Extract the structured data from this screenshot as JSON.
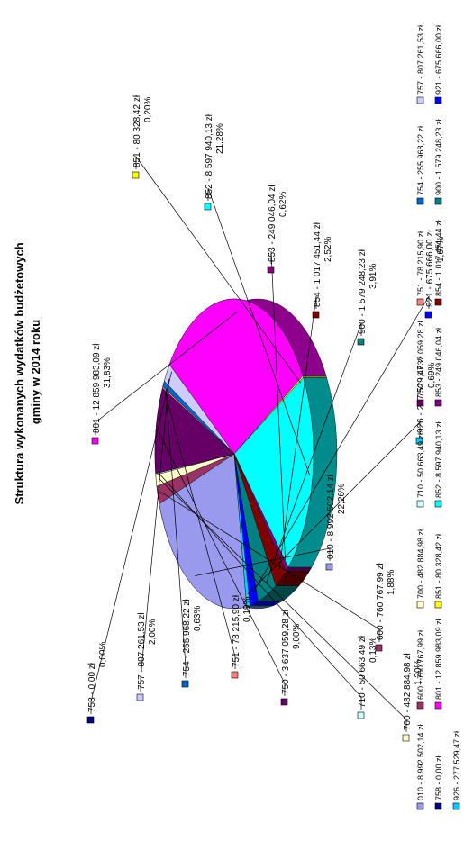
{
  "chart_data": {
    "type": "pie",
    "title_lines": [
      "Struktura wykonanych wydatków budżetowych",
      "gminy w 2014 roku"
    ],
    "legend_position": "right",
    "slices": [
      {
        "code": "010",
        "value": 8992502.14,
        "amount": "8 992 502,14 zł",
        "legend_amount": "8 992 502,14 zł",
        "percent": "22,26%",
        "color": "#9999ee"
      },
      {
        "code": "600",
        "value": 760767.99,
        "amount": "760 767,99 zł",
        "legend_amount": "760 767,99 zł",
        "percent": "1,88%",
        "color": "#993366"
      },
      {
        "code": "700",
        "value": 482884.98,
        "amount": "482 884,98 zł",
        "legend_amount": "482 884,98 zł",
        "percent": "1,20%",
        "color": "#ffffcc"
      },
      {
        "code": "710",
        "value": 50663.49,
        "amount": "50 663,49 zł",
        "legend_amount": "50 663,49 zł",
        "percent": "0,13%",
        "color": "#ccffff"
      },
      {
        "code": "750",
        "value": 3637059.28,
        "amount": "3 637 059,28 zł",
        "legend_amount": "3 637 059,28 zł",
        "percent": "9,00%",
        "color": "#660066"
      },
      {
        "code": "751",
        "value": 78215.9,
        "amount": "78 215,90 zł",
        "legend_amount": "78 215,90 zł",
        "percent": "0,19%",
        "color": "#ff8080"
      },
      {
        "code": "754",
        "value": 255968.22,
        "amount": "255 968,22 zł",
        "legend_amount": "255 968,22 zł",
        "percent": "0,63%",
        "color": "#0066cc"
      },
      {
        "code": "757",
        "value": 807261.53,
        "amount": "807 261,53 zł",
        "legend_amount": "807 261,53 zł",
        "percent": "2,00%",
        "color": "#ccccff"
      },
      {
        "code": "758",
        "value": 0.0,
        "amount": "0,00 zł",
        "legend_amount": "0,00 zł",
        "percent": "0,00%",
        "color": "#000080"
      },
      {
        "code": "801",
        "value": 12859983.09,
        "amount": "12 859 983,09 zł",
        "legend_amount": "12 859 983,09 zł",
        "percent": "31,83%",
        "color": "#ff00ff"
      },
      {
        "code": "851",
        "value": 80328.42,
        "amount": "80 328,42 zł",
        "legend_amount": "80 328,42 zł",
        "percent": "0,20%",
        "color": "#ffff00"
      },
      {
        "code": "852",
        "value": 8597940.13,
        "amount": "8 597 940,13 zł",
        "legend_amount": "8 597 940,13 zł",
        "percent": "21,28%",
        "color": "#00ffff"
      },
      {
        "code": "853",
        "value": 249046.04,
        "amount": "249 046,04 zł",
        "legend_amount": "249 046,04 zł",
        "percent": "0,62%",
        "color": "#800080"
      },
      {
        "code": "854",
        "value": 1017451.44,
        "amount": "1 017 451,44 zł",
        "legend_amount": "1 017 451,44 zł",
        "percent": "2,52%",
        "color": "#800000"
      },
      {
        "code": "900",
        "value": 1579248.23,
        "amount": "1 579 248,23 zł",
        "legend_amount": "1 579 248,23 zł",
        "percent": "3,91%",
        "color": "#008080"
      },
      {
        "code": "921",
        "value": 675666.0,
        "amount": "675 666,00 zł",
        "legend_amount": "675 666,00 zł",
        "percent": "1,67%",
        "color": "#0000ff"
      },
      {
        "code": "926",
        "value": 277529.47,
        "amount": "277 529,47 zł",
        "legend_amount": "277 529,47 zł",
        "percent": "0,69%",
        "color": "#00ccff"
      }
    ]
  }
}
